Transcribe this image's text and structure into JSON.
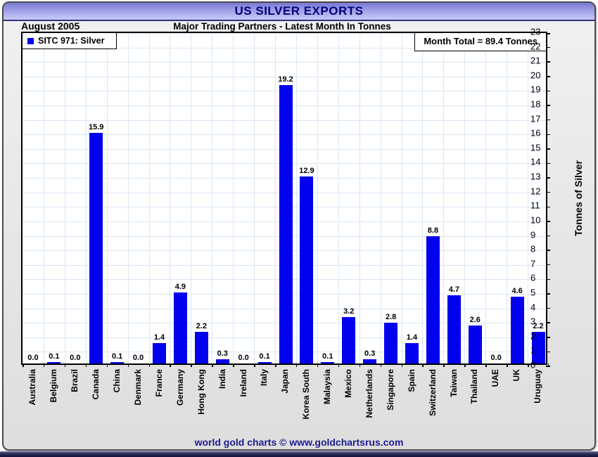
{
  "header": {
    "title": "US SILVER EXPORTS"
  },
  "subheader": {
    "period": "August 2005",
    "subtitle": "Major Trading Partners - Latest Month In Tonnes"
  },
  "legend": {
    "label": "SITC 971: Silver"
  },
  "annotation": {
    "month_total": "Month Total = 89.4 Tonnes"
  },
  "footer": {
    "credit": "world gold charts © www.goldchartsrus.com"
  },
  "colors": {
    "bar": "#0201ee",
    "grid": "#d9e7f5",
    "title_navy": "#00007d",
    "footer_navy": "#1b1b8f",
    "header_gradient_top": "#7678d2",
    "header_gradient_bottom": "#c9caf7"
  },
  "chart_data": {
    "type": "bar",
    "title": "US SILVER EXPORTS",
    "subtitle": "Major Trading Partners - Latest Month In Tonnes",
    "period": "August 2005",
    "series_name": "SITC 971: Silver",
    "categories": [
      "Australia",
      "Belgium",
      "Brazil",
      "Canada",
      "China",
      "Denmark",
      "France",
      "Germany",
      "Hong Kong",
      "India",
      "Ireland",
      "Italy",
      "Japan",
      "Korea South",
      "Malaysia",
      "Mexico",
      "Netherlands",
      "Singapore",
      "Spain",
      "Switzerland",
      "Taiwan",
      "Thailand",
      "UAE",
      "UK",
      "Uruguay"
    ],
    "values": [
      0.0,
      0.1,
      0.0,
      15.9,
      0.1,
      0.0,
      1.4,
      4.9,
      2.2,
      0.3,
      0.0,
      0.1,
      19.2,
      12.9,
      0.1,
      3.2,
      0.3,
      2.8,
      1.4,
      8.8,
      4.7,
      2.6,
      0.0,
      4.6,
      2.2
    ],
    "value_label_format": "one_decimal",
    "xlabel": "",
    "ylabel": "Tonnes of Silver",
    "ylim": [
      0,
      23
    ],
    "ytick_step": 1,
    "yaxis_side": "right",
    "grid": true,
    "legend_position": "top-left",
    "annotation": "Month Total = 89.4 Tonnes",
    "month_total_tonnes": 89.4
  }
}
